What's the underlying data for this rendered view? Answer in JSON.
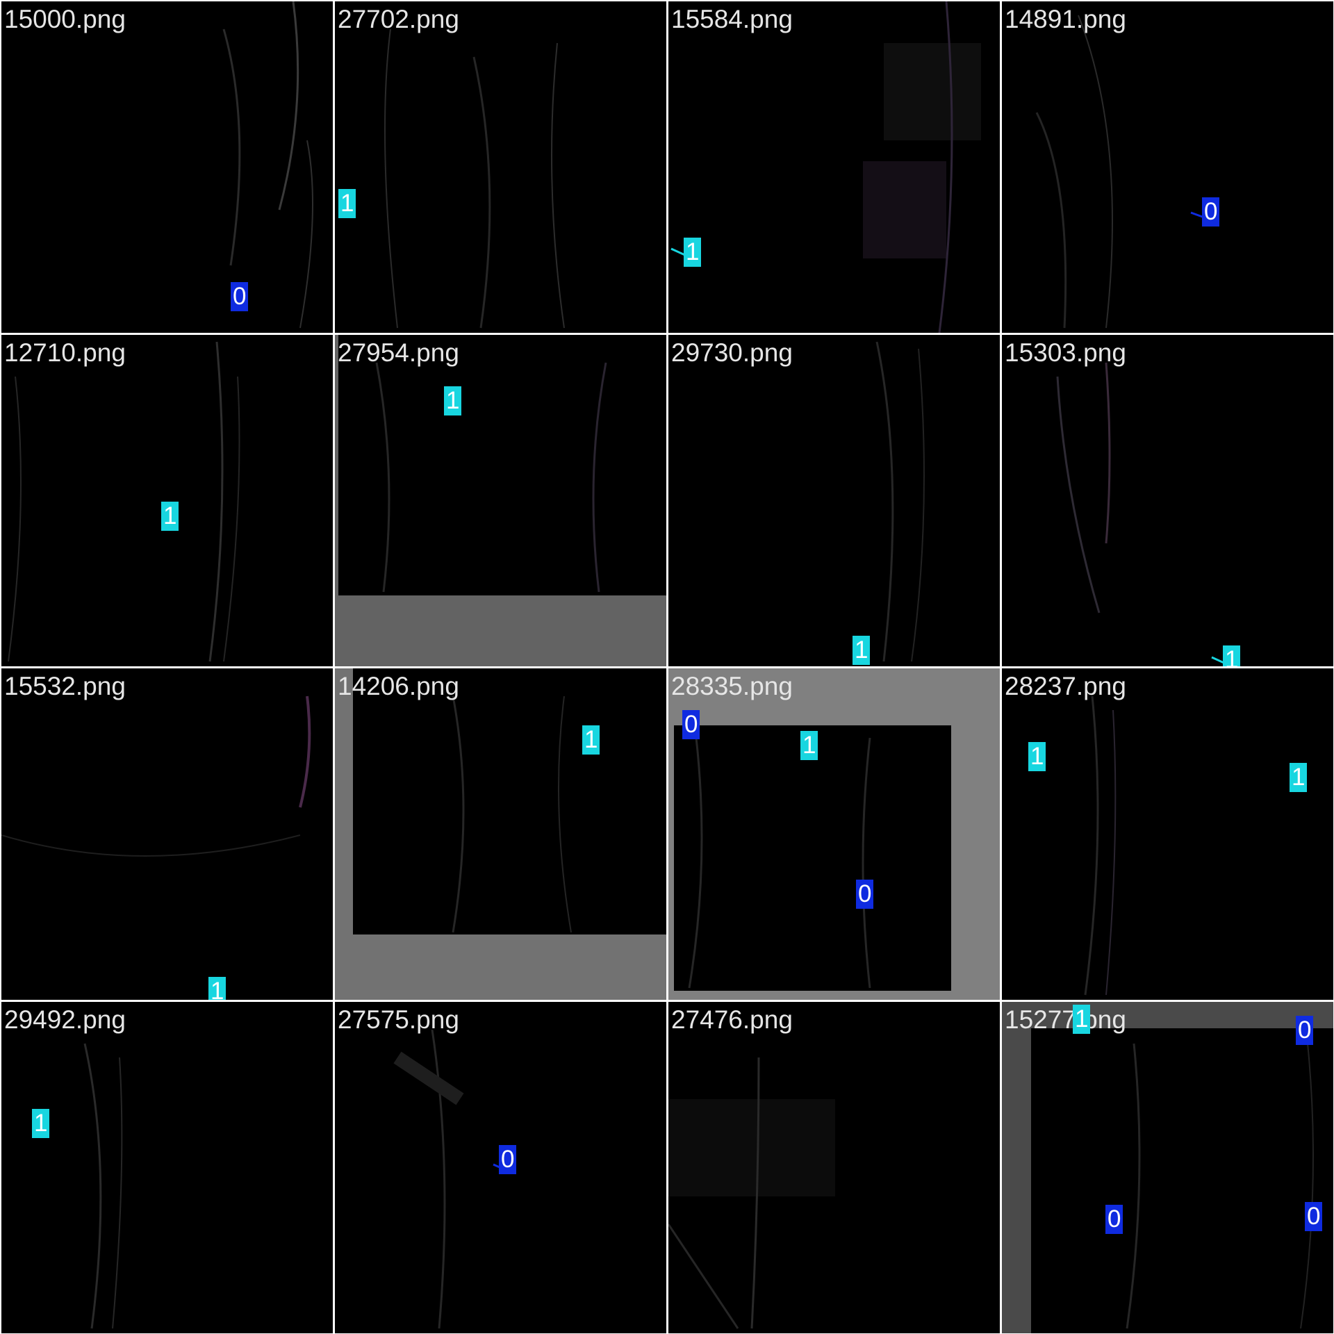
{
  "colors": {
    "class_1": "#18d6e0",
    "class_0": "#0f2be0",
    "grid_line": "#ffffff",
    "tile_bg": "#000000"
  },
  "tiles": [
    {
      "file": "15000.png",
      "labels": [
        {
          "cls": "0"
        }
      ]
    },
    {
      "file": "27702.png",
      "labels": [
        {
          "cls": "1"
        }
      ]
    },
    {
      "file": "15584.png",
      "labels": [
        {
          "cls": "1"
        }
      ]
    },
    {
      "file": "14891.png",
      "labels": [
        {
          "cls": "0"
        }
      ]
    },
    {
      "file": "12710.png",
      "labels": [
        {
          "cls": "1"
        }
      ]
    },
    {
      "file": "27954.png",
      "labels": [
        {
          "cls": "1"
        }
      ]
    },
    {
      "file": "29730.png",
      "labels": [
        {
          "cls": "1"
        }
      ]
    },
    {
      "file": "15303.png",
      "labels": [
        {
          "cls": "1"
        }
      ]
    },
    {
      "file": "15532.png",
      "labels": [
        {
          "cls": "1"
        }
      ]
    },
    {
      "file": "14206.png",
      "labels": [
        {
          "cls": "1"
        }
      ]
    },
    {
      "file": "28335.png",
      "labels": [
        {
          "cls": "0"
        },
        {
          "cls": "1"
        },
        {
          "cls": "0"
        }
      ]
    },
    {
      "file": "28237.png",
      "labels": [
        {
          "cls": "1"
        },
        {
          "cls": "1"
        }
      ]
    },
    {
      "file": "29492.png",
      "labels": [
        {
          "cls": "1"
        }
      ]
    },
    {
      "file": "27575.png",
      "labels": [
        {
          "cls": "0"
        }
      ]
    },
    {
      "file": "27476.png",
      "labels": []
    },
    {
      "file": "15277.png",
      "labels": [
        {
          "cls": "1"
        },
        {
          "cls": "0"
        },
        {
          "cls": "0"
        },
        {
          "cls": "0"
        }
      ]
    }
  ]
}
